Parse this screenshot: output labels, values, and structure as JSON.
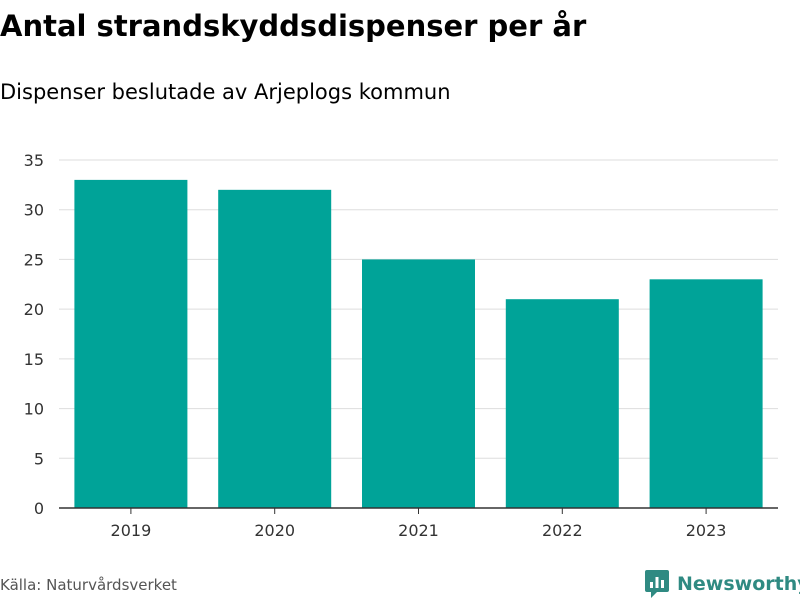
{
  "title": "Antal strandskyddsdispenser per år",
  "subtitle": "Dispenser beslutade av Arjeplogs kommun",
  "source": "Källa: Naturvårdsverket",
  "brand": {
    "name": "Newsworthy",
    "icon": "newsworthy-logo-icon",
    "color": "#2f8a82"
  },
  "chart_data": {
    "type": "bar",
    "categories": [
      "2019",
      "2020",
      "2021",
      "2022",
      "2023"
    ],
    "values": [
      33,
      32,
      25,
      21,
      23
    ],
    "ylim": [
      0,
      35
    ],
    "yticks": [
      0,
      5,
      10,
      15,
      20,
      25,
      30,
      35
    ],
    "xlabel": "",
    "ylabel": "",
    "grid": true,
    "bar_color": "#00a398"
  }
}
